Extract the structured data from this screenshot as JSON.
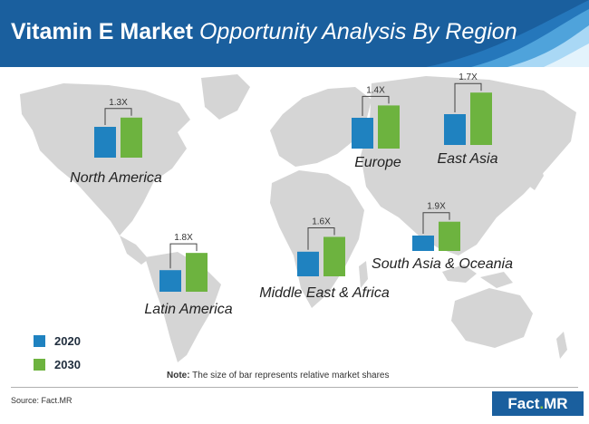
{
  "header": {
    "title_bold": "Vitamin E Market",
    "title_italic": "Opportunity Analysis By Region"
  },
  "chart_data": {
    "type": "bar",
    "title": "Vitamin E Market Opportunity Analysis By Region",
    "series": [
      {
        "name": "2020",
        "color": "#1f82c0"
      },
      {
        "name": "2030",
        "color": "#6db33f"
      }
    ],
    "regions": [
      {
        "name": "North America",
        "multiplier": "1.3X",
        "v2020": 1.0,
        "v2030": 1.3
      },
      {
        "name": "Europe",
        "multiplier": "1.4X",
        "v2020": 1.0,
        "v2030": 1.4
      },
      {
        "name": "East Asia",
        "multiplier": "1.7X",
        "v2020": 1.0,
        "v2030": 1.7
      },
      {
        "name": "South Asia & Oceania",
        "multiplier": "1.9X",
        "v2020": 0.5,
        "v2030": 0.95
      },
      {
        "name": "Middle East & Africa",
        "multiplier": "1.6X",
        "v2020": 0.8,
        "v2030": 1.28
      },
      {
        "name": "Latin America",
        "multiplier": "1.8X",
        "v2020": 0.7,
        "v2030": 1.26
      }
    ],
    "legend_position": "bottom-left",
    "grid": false
  },
  "legend": {
    "items": [
      {
        "label": "2020",
        "color": "#1f82c0"
      },
      {
        "label": "2030",
        "color": "#6db33f"
      }
    ]
  },
  "note": {
    "bold": "Note:",
    "text": "The size of bar represents relative market shares"
  },
  "source": "Source: Fact.MR",
  "brand": {
    "name": "Fact",
    "dot": ".",
    "suffix": "MR"
  },
  "colors": {
    "header": "#1a5f9e",
    "map": "#d5d5d5",
    "bar2020": "#1f82c0",
    "bar2030": "#6db33f"
  }
}
